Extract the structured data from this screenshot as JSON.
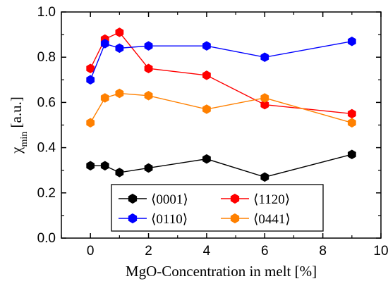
{
  "chart_data": {
    "type": "line",
    "xlabel": "MgO-Concentration in melt [%]",
    "ylabel": "χ",
    "ylabel_sub": "min",
    "ylabel_unit": " [a.u.]",
    "xlim": [
      -1,
      10
    ],
    "ylim": [
      0.0,
      1.0
    ],
    "xticks": [
      0,
      2,
      4,
      6,
      8,
      10
    ],
    "yticks": [
      0.0,
      0.2,
      0.4,
      0.6,
      0.8,
      1.0
    ],
    "xtick_labels": [
      "0",
      "2",
      "4",
      "6",
      "8",
      "10"
    ],
    "ytick_labels": [
      "0.0",
      "0.2",
      "0.4",
      "0.6",
      "0.8",
      "1.0"
    ],
    "grid": false,
    "legend_position": "bottom-center",
    "marker": "hexagon",
    "series": [
      {
        "name": "⟨0001⟩",
        "color": "#000000",
        "x": [
          0,
          0.5,
          1,
          2,
          4,
          6,
          9
        ],
        "y": [
          0.32,
          0.32,
          0.29,
          0.31,
          0.35,
          0.27,
          0.37
        ]
      },
      {
        "name": "⟨1120⟩",
        "color": "#ff0000",
        "x": [
          0,
          0.5,
          1,
          2,
          4,
          6,
          9
        ],
        "y": [
          0.75,
          0.88,
          0.91,
          0.75,
          0.72,
          0.59,
          0.55
        ]
      },
      {
        "name": "⟨0110⟩",
        "color": "#0000ff",
        "x": [
          0,
          0.5,
          1,
          2,
          4,
          6,
          9
        ],
        "y": [
          0.7,
          0.86,
          0.84,
          0.85,
          0.85,
          0.8,
          0.87
        ]
      },
      {
        "name": "⟨0441⟩",
        "color": "#ff8000",
        "x": [
          0,
          0.5,
          1,
          2,
          4,
          6,
          9
        ],
        "y": [
          0.51,
          0.62,
          0.64,
          0.63,
          0.57,
          0.62,
          0.51
        ]
      }
    ]
  }
}
